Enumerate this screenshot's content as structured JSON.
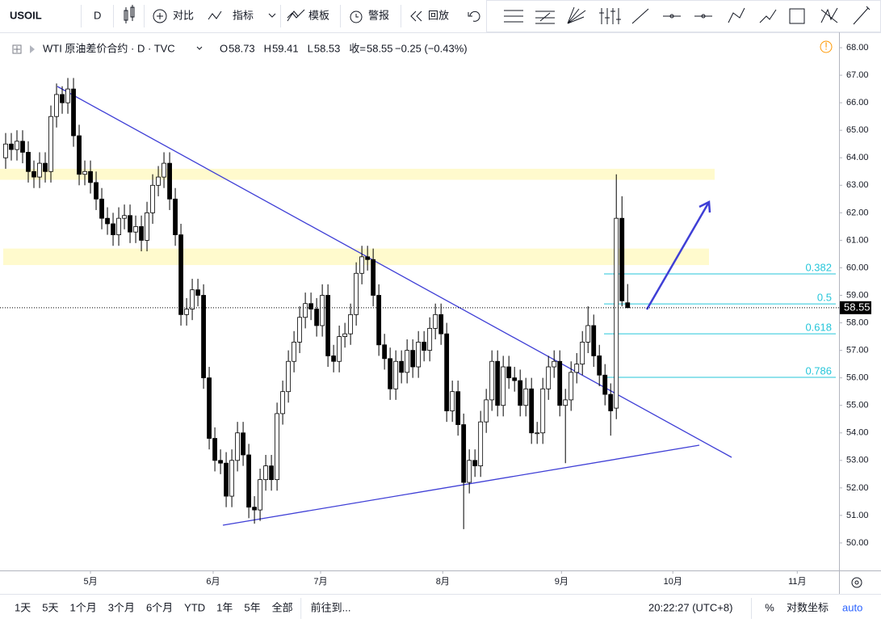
{
  "toolbar": {
    "symbol": "USOIL",
    "interval": "D",
    "compare": "对比",
    "indicators": "指标",
    "templates": "模板",
    "alerts": "警报",
    "replay": "回放"
  },
  "header": {
    "title": "WTI 原油差价合约 · D · TVC",
    "ohlc": [
      {
        "key": "O",
        "value": "58.73"
      },
      {
        "key": "H",
        "value": "59.41"
      },
      {
        "key": "L",
        "value": "58.53"
      },
      {
        "key": "收=",
        "value": "58.55"
      }
    ],
    "change": "−0.25 (−0.43%)"
  },
  "chart_data": {
    "type": "candlestick",
    "price_label": "58.55",
    "open": [
      64.0,
      64.5,
      64.3,
      64.6,
      64.2,
      63.5,
      63.3,
      63.8,
      63.5,
      65.5,
      66.3,
      66.0,
      66.5,
      64.8,
      63.4,
      63.5,
      63.1,
      62.5,
      61.8,
      61.6,
      61.2,
      61.8,
      61.9,
      61.3,
      61.5,
      61.0,
      62.0,
      63.0,
      63.3,
      63.8,
      62.5,
      61.2,
      58.3,
      58.5,
      59.2,
      59.0,
      56.0,
      53.8,
      53.0,
      52.9,
      51.7,
      53.0,
      54.0,
      53.2,
      51.3,
      51.2,
      52.3,
      52.8,
      52.3,
      54.7,
      55.5,
      56.6,
      57.3,
      58.2,
      58.7,
      58.5,
      57.9,
      59.0,
      56.8,
      56.6,
      57.5,
      57.6,
      58.3,
      59.8,
      60.4,
      60.3,
      59.0,
      57.2,
      56.7,
      55.6,
      56.6,
      56.2,
      57.0,
      56.4,
      57.3,
      57.0,
      57.8,
      58.3,
      57.6,
      54.8,
      55.5,
      54.3,
      52.2,
      53.0,
      52.8,
      54.4,
      55.2,
      56.6,
      55.0,
      56.4,
      56.0,
      55.9,
      55.0,
      55.6,
      54.0,
      54.0,
      55.6,
      56.4,
      56.6,
      55.0,
      55.2,
      56.2,
      56.5,
      57.3,
      57.9,
      56.8,
      56.1,
      55.4,
      54.9,
      61.8,
      58.73
    ],
    "high": [
      64.9,
      64.9,
      65.0,
      65.0,
      64.6,
      63.9,
      64.2,
      64.2,
      65.9,
      66.7,
      66.6,
      66.9,
      66.9,
      65.2,
      63.9,
      63.9,
      63.5,
      62.9,
      62.2,
      62.0,
      62.2,
      62.3,
      62.3,
      61.9,
      61.9,
      62.4,
      63.4,
      63.7,
      64.2,
      64.2,
      62.9,
      61.6,
      58.9,
      59.6,
      59.6,
      59.4,
      56.4,
      54.2,
      53.4,
      53.3,
      53.4,
      54.4,
      54.4,
      53.6,
      51.7,
      52.7,
      53.2,
      53.2,
      55.1,
      55.9,
      57.0,
      57.7,
      58.6,
      59.1,
      59.1,
      58.9,
      59.4,
      59.4,
      57.2,
      57.9,
      58.0,
      58.7,
      60.2,
      60.8,
      60.8,
      60.7,
      59.4,
      57.6,
      57.1,
      57.0,
      57.0,
      57.4,
      57.4,
      57.7,
      57.7,
      58.2,
      58.7,
      58.7,
      58.0,
      55.9,
      55.9,
      54.7,
      53.4,
      53.4,
      54.8,
      55.6,
      57.0,
      57.0,
      56.8,
      56.8,
      56.4,
      56.3,
      56.0,
      56.0,
      54.4,
      56.0,
      56.8,
      57.0,
      57.0,
      55.6,
      56.6,
      56.9,
      57.7,
      58.6,
      58.3,
      57.2,
      56.5,
      55.8,
      63.4,
      62.6,
      59.41
    ],
    "low": [
      63.6,
      63.9,
      63.9,
      63.8,
      63.1,
      62.9,
      62.9,
      63.1,
      63.1,
      65.1,
      65.6,
      65.6,
      64.4,
      63.0,
      63.0,
      62.7,
      62.1,
      61.4,
      61.2,
      60.8,
      60.8,
      61.4,
      60.9,
      60.9,
      60.6,
      60.6,
      61.6,
      62.6,
      62.9,
      62.1,
      60.8,
      57.9,
      57.9,
      58.1,
      58.6,
      55.6,
      53.4,
      52.6,
      52.5,
      51.3,
      51.3,
      52.6,
      52.8,
      50.9,
      50.7,
      50.8,
      51.9,
      51.9,
      51.9,
      54.3,
      55.1,
      56.2,
      56.9,
      57.8,
      58.1,
      57.5,
      57.5,
      56.4,
      56.2,
      56.2,
      57.1,
      57.2,
      57.9,
      59.4,
      59.9,
      58.6,
      56.8,
      56.3,
      55.2,
      55.2,
      55.8,
      55.8,
      56.0,
      56.0,
      56.6,
      56.6,
      57.4,
      57.2,
      54.4,
      54.4,
      53.9,
      50.5,
      51.8,
      52.4,
      52.4,
      54.0,
      54.8,
      54.6,
      54.6,
      55.6,
      55.5,
      54.6,
      54.6,
      53.6,
      53.6,
      53.6,
      55.2,
      56.0,
      54.6,
      52.9,
      54.8,
      55.8,
      56.1,
      56.9,
      56.4,
      55.7,
      55.0,
      53.9,
      54.5,
      58.6,
      58.53
    ],
    "close": [
      64.5,
      64.3,
      64.6,
      64.2,
      63.5,
      63.3,
      63.8,
      63.5,
      65.5,
      66.3,
      66.0,
      66.5,
      64.8,
      63.4,
      63.5,
      63.1,
      62.5,
      61.8,
      61.6,
      61.2,
      61.8,
      61.9,
      61.3,
      61.5,
      61.0,
      62.0,
      63.0,
      63.3,
      63.8,
      62.5,
      61.2,
      58.3,
      58.5,
      59.2,
      59.0,
      56.0,
      53.8,
      53.0,
      52.9,
      51.7,
      53.0,
      54.0,
      53.2,
      51.3,
      51.2,
      52.3,
      52.8,
      52.3,
      54.7,
      55.5,
      56.6,
      57.3,
      58.2,
      58.7,
      58.5,
      57.9,
      59.0,
      56.8,
      56.6,
      57.5,
      57.6,
      58.3,
      59.8,
      60.4,
      60.3,
      59.0,
      57.2,
      56.7,
      55.6,
      56.6,
      56.2,
      57.0,
      56.4,
      57.3,
      57.0,
      57.8,
      58.3,
      57.6,
      54.8,
      55.5,
      54.3,
      52.2,
      53.0,
      52.8,
      54.4,
      55.2,
      56.6,
      55.0,
      56.4,
      56.0,
      55.9,
      55.0,
      55.6,
      54.0,
      54.0,
      55.6,
      56.4,
      56.6,
      55.0,
      55.2,
      56.2,
      56.5,
      57.3,
      57.9,
      56.8,
      56.1,
      55.4,
      54.8,
      61.8,
      58.8,
      58.55
    ],
    "up_color": "#ffffff",
    "down_color": "#000000",
    "border_color": "#000000",
    "xlim": [
      -1,
      147.1
    ],
    "xticks": [
      {
        "value": 15.0,
        "label": "5月"
      },
      {
        "value": 36.7,
        "label": "6月"
      },
      {
        "value": 55.7,
        "label": "7月"
      },
      {
        "value": 77.3,
        "label": "8月"
      },
      {
        "value": 98.3,
        "label": "9月"
      },
      {
        "value": 118.0,
        "label": "10月"
      },
      {
        "value": 140.0,
        "label": "11月"
      }
    ],
    "ylim": [
      49.0,
      68.56
    ],
    "yticks": [
      {
        "value": 50,
        "label": "50.00"
      },
      {
        "value": 51,
        "label": "51.00"
      },
      {
        "value": 52,
        "label": "52.00"
      },
      {
        "value": 53,
        "label": "53.00"
      },
      {
        "value": 54,
        "label": "54.00"
      },
      {
        "value": 55,
        "label": "55.00"
      },
      {
        "value": 56,
        "label": "56.00"
      },
      {
        "value": 57,
        "label": "57.00"
      },
      {
        "value": 58,
        "label": "58.00"
      },
      {
        "value": 59,
        "label": "59.00"
      },
      {
        "value": 60,
        "label": "60.00"
      },
      {
        "value": 61,
        "label": "61.00"
      },
      {
        "value": 62,
        "label": "62.00"
      },
      {
        "value": 63,
        "label": "63.00"
      },
      {
        "value": 64,
        "label": "64.00"
      },
      {
        "value": 65,
        "label": "65.00"
      },
      {
        "value": 66,
        "label": "66.00"
      },
      {
        "value": 67,
        "label": "67.00"
      },
      {
        "value": 68,
        "label": "68.00"
      }
    ],
    "zones": [
      {
        "from": 63.2,
        "to": 63.6
      },
      {
        "from": 60.1,
        "to": 60.7
      }
    ],
    "fib": [
      {
        "label": "0.382",
        "price": 59.78
      },
      {
        "label": "0.5",
        "price": 58.69
      },
      {
        "label": "0.618",
        "price": 57.6
      },
      {
        "label": "0.786",
        "price": 56.02
      }
    ],
    "fib_color": "#26c6da"
  },
  "bottom": {
    "ranges": [
      "1天",
      "5天",
      "1个月",
      "3个月",
      "6个月",
      "YTD",
      "1年",
      "5年",
      "全部"
    ],
    "goto": "前往到...",
    "time": "20:22:27 (UTC+8)",
    "percent": "%",
    "log": "对数坐标",
    "auto": "auto"
  }
}
